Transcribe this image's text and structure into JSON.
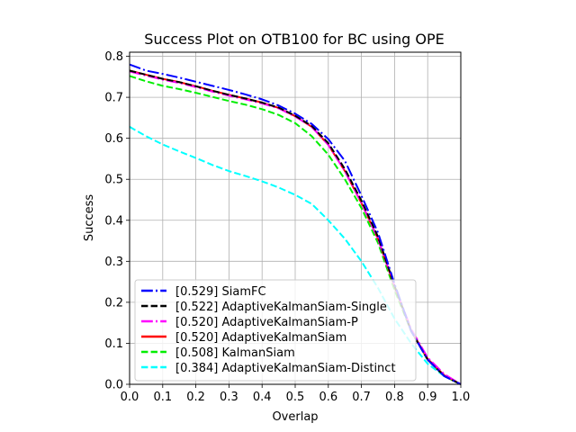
{
  "chart_data": {
    "type": "line",
    "title": "Success Plot on OTB100 for BC using OPE",
    "xlabel": "Overlap",
    "ylabel": "Success",
    "xlim": [
      0,
      1
    ],
    "ylim": [
      0,
      0.81
    ],
    "xticks": [
      0,
      0.1,
      0.2,
      0.3,
      0.4,
      0.5,
      0.6,
      0.7,
      0.8,
      0.9,
      1.0
    ],
    "xtick_labels": [
      "0.0",
      "0.1",
      "0.2",
      "0.3",
      "0.4",
      "0.5",
      "0.6",
      "0.7",
      "0.8",
      "0.9",
      "1.0"
    ],
    "yticks": [
      0,
      0.1,
      0.2,
      0.3,
      0.4,
      0.5,
      0.6,
      0.7,
      0.8
    ],
    "ytick_labels": [
      "0.0",
      "0.1",
      "0.2",
      "0.3",
      "0.4",
      "0.5",
      "0.6",
      "0.7",
      "0.8"
    ],
    "grid": true,
    "legend_position": "lower-left",
    "x": [
      0,
      0.05,
      0.1,
      0.15,
      0.2,
      0.25,
      0.3,
      0.35,
      0.4,
      0.45,
      0.5,
      0.55,
      0.6,
      0.65,
      0.7,
      0.75,
      0.8,
      0.85,
      0.9,
      0.95,
      1.0
    ],
    "series": [
      {
        "name": "[0.529] SiamFC",
        "color": "#0000ff",
        "dash": "dashdot",
        "values": [
          0.78,
          0.765,
          0.757,
          0.748,
          0.738,
          0.728,
          0.718,
          0.707,
          0.695,
          0.68,
          0.66,
          0.635,
          0.598,
          0.545,
          0.46,
          0.37,
          0.245,
          0.13,
          0.06,
          0.02,
          0.0
        ]
      },
      {
        "name": "[0.522] AdaptiveKalmanSiam-Single",
        "color": "#000000",
        "dash": "dashed",
        "values": [
          0.765,
          0.755,
          0.745,
          0.737,
          0.727,
          0.716,
          0.706,
          0.697,
          0.687,
          0.675,
          0.655,
          0.63,
          0.588,
          0.525,
          0.448,
          0.36,
          0.24,
          0.13,
          0.06,
          0.02,
          0.0
        ]
      },
      {
        "name": "[0.520] AdaptiveKalmanSiam-P",
        "color": "#ff00ff",
        "dash": "dashdot",
        "values": [
          0.763,
          0.753,
          0.743,
          0.735,
          0.725,
          0.714,
          0.704,
          0.695,
          0.685,
          0.673,
          0.653,
          0.628,
          0.584,
          0.52,
          0.443,
          0.355,
          0.24,
          0.135,
          0.065,
          0.025,
          0.0
        ]
      },
      {
        "name": "[0.520] AdaptiveKalmanSiam",
        "color": "#ff0000",
        "dash": "solid",
        "values": [
          0.765,
          0.755,
          0.745,
          0.737,
          0.727,
          0.716,
          0.706,
          0.697,
          0.687,
          0.674,
          0.654,
          0.628,
          0.584,
          0.52,
          0.442,
          0.355,
          0.238,
          0.132,
          0.062,
          0.022,
          0.0
        ]
      },
      {
        "name": "[0.508] KalmanSiam",
        "color": "#00ee00",
        "dash": "dashed",
        "values": [
          0.752,
          0.739,
          0.728,
          0.72,
          0.711,
          0.701,
          0.691,
          0.682,
          0.671,
          0.657,
          0.637,
          0.605,
          0.56,
          0.5,
          0.43,
          0.345,
          0.23,
          0.13,
          0.06,
          0.02,
          0.0
        ]
      },
      {
        "name": "[0.384] AdaptiveKalmanSiam-Distinct",
        "color": "#00ffff",
        "dash": "dashed",
        "values": [
          0.628,
          0.605,
          0.585,
          0.568,
          0.552,
          0.535,
          0.52,
          0.508,
          0.495,
          0.48,
          0.462,
          0.44,
          0.4,
          0.355,
          0.3,
          0.235,
          0.16,
          0.1,
          0.05,
          0.02,
          0.0
        ]
      }
    ]
  }
}
